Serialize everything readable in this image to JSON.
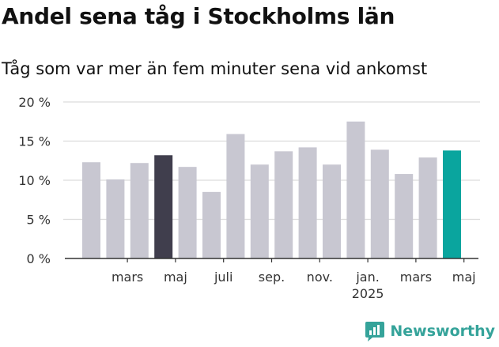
{
  "header": {
    "title": "Andel sena tåg i Stockholms län",
    "subtitle": "Tåg som var mer än fem minuter sena vid ankomst"
  },
  "brand": {
    "name": "Newsworthy",
    "icon": "newsworthy-logo-icon",
    "color": "#35a39a"
  },
  "chart_data": {
    "type": "bar",
    "title": "Andel sena tåg i Stockholms län",
    "subtitle": "Tåg som var mer än fem minuter sena vid ankomst",
    "ylim": [
      0,
      20
    ],
    "yticks": [
      0,
      5,
      10,
      15,
      20
    ],
    "ytick_labels": [
      "0 %",
      "5 %",
      "10 %",
      "15 %",
      "20 %"
    ],
    "ytick_labels_on": "top-of-gridline",
    "grid": true,
    "values": [
      12.3,
      10.1,
      12.2,
      13.2,
      11.7,
      8.5,
      15.9,
      12.0,
      13.7,
      14.2,
      12.0,
      17.5,
      13.9,
      10.8,
      12.9,
      13.8
    ],
    "x_tick_labels": [
      {
        "bar_index": 1.5,
        "lines": [
          "mars"
        ]
      },
      {
        "bar_index": 3.5,
        "lines": [
          "maj"
        ]
      },
      {
        "bar_index": 5.5,
        "lines": [
          "juli"
        ]
      },
      {
        "bar_index": 7.5,
        "lines": [
          "sep."
        ]
      },
      {
        "bar_index": 9.5,
        "lines": [
          "nov."
        ]
      },
      {
        "bar_index": 11.5,
        "lines": [
          "jan.",
          "2025"
        ]
      },
      {
        "bar_index": 13.5,
        "lines": [
          "mars"
        ]
      },
      {
        "bar_index": 15.5,
        "lines": [
          "maj"
        ]
      }
    ],
    "colors": {
      "default": "#c8c7d1",
      "highlight_previous_year": "#403e4d",
      "highlight_latest": "#0aa59e"
    },
    "highlight_indices": {
      "previous_year": 3,
      "latest": 15
    }
  }
}
